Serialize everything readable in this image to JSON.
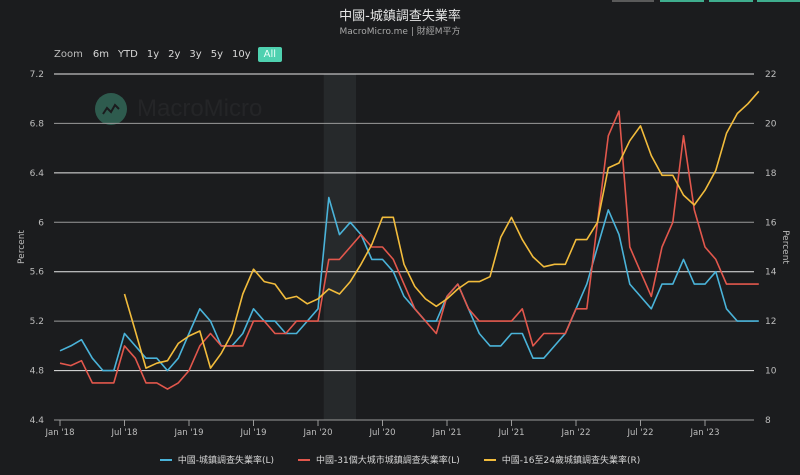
{
  "header": {
    "title": "中國-城鎮調查失業率",
    "subtitle": "MacroMicro.me | 財經M平方"
  },
  "zoom": {
    "label": "Zoom",
    "buttons": [
      "6m",
      "YTD",
      "1y",
      "2y",
      "3y",
      "5y",
      "10y",
      "All"
    ],
    "active": "All"
  },
  "watermark": {
    "text": "MacroMicro"
  },
  "colors": {
    "background": "#1b1c1e",
    "blue": "#4ab3d9",
    "red": "#e2574c",
    "yellow": "#f2bc3c",
    "accent": "#4fd1b0",
    "grid": "#d9d9d9",
    "shade": "#26292b"
  },
  "legend": [
    {
      "label": "中國-城鎮調查失業率(L)",
      "color": "#4ab3d9"
    },
    {
      "label": "中國-31個大城市城鎮調查失業率(L)",
      "color": "#e2574c"
    },
    {
      "label": "中國-16至24歲城鎮調查失業率(R)",
      "color": "#f2bc3c"
    }
  ],
  "chart_data": {
    "type": "line",
    "title": "中國-城鎮調查失業率",
    "subtitle": "MacroMicro.me | 財經M平方",
    "xlabel": "",
    "ylabel_left": "Percent",
    "ylabel_right": "Percent",
    "ylim_left": [
      4.4,
      7.2
    ],
    "ylim_right": [
      8,
      22
    ],
    "yticks_left": [
      "7.2",
      "6.8",
      "6.4",
      "6",
      "5.6",
      "5.2",
      "4.8",
      "4.4"
    ],
    "yticks_right": [
      "22",
      "20",
      "18",
      "16",
      "14",
      "12",
      "10",
      "8"
    ],
    "xticks": [
      "Jan '18",
      "Jul '18",
      "Jan '19",
      "Jul '19",
      "Jan '20",
      "Jul '20",
      "Jan '21",
      "Jul '21",
      "Jan '22",
      "Jul '22",
      "Jan '23"
    ],
    "grid": true,
    "legend_position": "bottom",
    "shaded_region": {
      "from": "2020-02",
      "to": "2020-04"
    },
    "x": [
      "2018-01",
      "2018-02",
      "2018-03",
      "2018-04",
      "2018-05",
      "2018-06",
      "2018-07",
      "2018-08",
      "2018-09",
      "2018-10",
      "2018-11",
      "2018-12",
      "2019-01",
      "2019-02",
      "2019-03",
      "2019-04",
      "2019-05",
      "2019-06",
      "2019-07",
      "2019-08",
      "2019-09",
      "2019-10",
      "2019-11",
      "2019-12",
      "2020-01",
      "2020-02",
      "2020-03",
      "2020-04",
      "2020-05",
      "2020-06",
      "2020-07",
      "2020-08",
      "2020-09",
      "2020-10",
      "2020-11",
      "2020-12",
      "2021-01",
      "2021-02",
      "2021-03",
      "2021-04",
      "2021-05",
      "2021-06",
      "2021-07",
      "2021-08",
      "2021-09",
      "2021-10",
      "2021-11",
      "2021-12",
      "2022-01",
      "2022-02",
      "2022-03",
      "2022-04",
      "2022-05",
      "2022-06",
      "2022-07",
      "2022-08",
      "2022-09",
      "2022-10",
      "2022-11",
      "2022-12",
      "2023-01",
      "2023-02",
      "2023-03",
      "2023-04",
      "2023-05",
      "2023-06"
    ],
    "series": [
      {
        "name": "中國-城鎮調查失業率(L)",
        "axis": "left",
        "color": "#4ab3d9",
        "values": [
          4.96,
          5.0,
          5.05,
          4.9,
          4.8,
          4.8,
          5.1,
          5.0,
          4.9,
          4.9,
          4.8,
          4.9,
          5.1,
          5.3,
          5.2,
          5.0,
          5.0,
          5.1,
          5.3,
          5.2,
          5.2,
          5.1,
          5.1,
          5.2,
          5.3,
          6.2,
          5.9,
          6.0,
          5.9,
          5.7,
          5.7,
          5.6,
          5.4,
          5.3,
          5.2,
          5.2,
          5.4,
          5.5,
          5.3,
          5.1,
          5.0,
          5.0,
          5.1,
          5.1,
          4.9,
          4.9,
          5.0,
          5.1,
          5.3,
          5.5,
          5.8,
          6.1,
          5.9,
          5.5,
          5.4,
          5.3,
          5.5,
          5.5,
          5.7,
          5.5,
          5.5,
          5.6,
          5.3,
          5.2,
          5.2,
          5.2
        ]
      },
      {
        "name": "中國-31個大城市城鎮調查失業率(L)",
        "axis": "left",
        "color": "#e2574c",
        "values": [
          4.86,
          4.84,
          4.88,
          4.7,
          4.7,
          4.7,
          5.0,
          4.9,
          4.7,
          4.7,
          4.65,
          4.7,
          4.8,
          5.0,
          5.1,
          5.0,
          5.0,
          5.0,
          5.2,
          5.2,
          5.1,
          5.1,
          5.2,
          5.2,
          5.2,
          5.7,
          5.7,
          5.8,
          5.9,
          5.8,
          5.8,
          5.7,
          5.5,
          5.3,
          5.2,
          5.1,
          5.4,
          5.5,
          5.3,
          5.2,
          5.2,
          5.2,
          5.2,
          5.3,
          5.0,
          5.1,
          5.1,
          5.1,
          5.3,
          5.3,
          6.0,
          6.7,
          6.9,
          5.8,
          5.6,
          5.4,
          5.8,
          6.0,
          6.7,
          6.1,
          5.8,
          5.7,
          5.5,
          5.5,
          5.5,
          5.5
        ]
      },
      {
        "name": "中國-16至24歲城鎮調查失業率(R)",
        "axis": "right",
        "color": "#f2bc3c",
        "values": [
          null,
          null,
          null,
          null,
          null,
          null,
          13.1,
          11.6,
          10.1,
          10.3,
          10.4,
          11.1,
          11.4,
          11.6,
          10.1,
          10.7,
          11.5,
          13.1,
          14.1,
          13.6,
          13.5,
          12.9,
          13.0,
          12.7,
          12.9,
          13.3,
          13.1,
          13.6,
          14.3,
          15.1,
          16.2,
          16.2,
          14.3,
          13.4,
          12.9,
          12.6,
          12.9,
          13.3,
          13.6,
          13.6,
          13.8,
          15.4,
          16.2,
          15.3,
          14.6,
          14.2,
          14.3,
          14.3,
          15.3,
          15.3,
          16.0,
          18.2,
          18.4,
          19.3,
          19.9,
          18.7,
          17.9,
          17.9,
          17.1,
          16.7,
          17.3,
          18.1,
          19.6,
          20.4,
          20.8,
          21.3
        ]
      }
    ]
  },
  "axes": {
    "left_title": "Percent",
    "right_title": "Percent",
    "left_ticks": [
      "7.2",
      "6.8",
      "6.4",
      "6",
      "5.6",
      "5.2",
      "4.8",
      "4.4"
    ],
    "right_ticks": [
      "22",
      "20",
      "18",
      "16",
      "14",
      "12",
      "10",
      "8"
    ],
    "x_ticks": [
      "Jan '18",
      "Jul '18",
      "Jan '19",
      "Jul '19",
      "Jan '20",
      "Jul '20",
      "Jan '21",
      "Jul '21",
      "Jan '22",
      "Jul '22",
      "Jan '23"
    ]
  }
}
